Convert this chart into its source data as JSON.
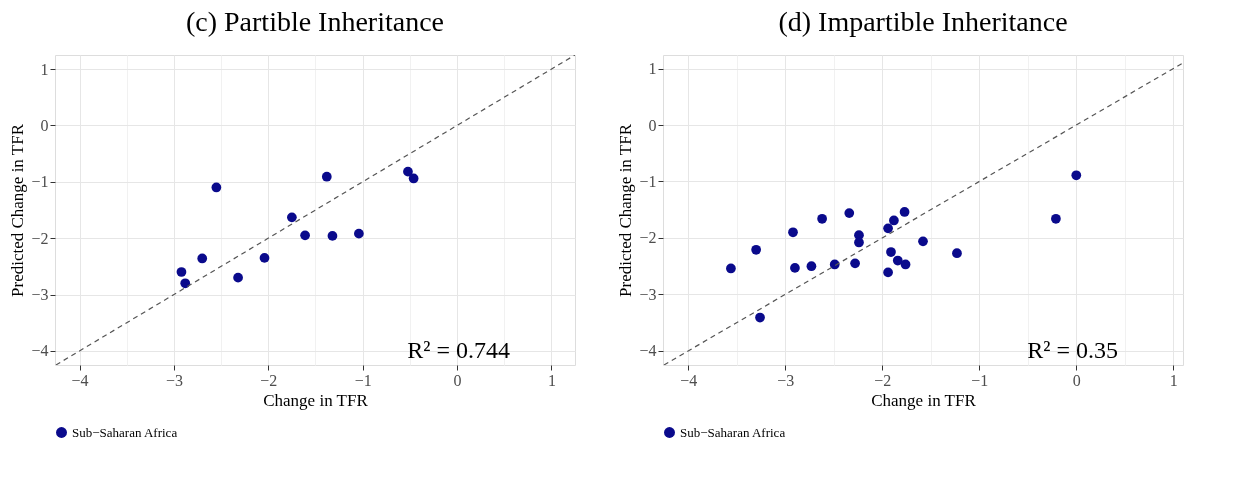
{
  "chart_data": [
    {
      "type": "scatter",
      "title": "(c) Partible Inheritance",
      "xlabel": "Change in TFR",
      "ylabel": "Predicted Change in TFR",
      "xlim": [
        -4.26,
        1.25
      ],
      "ylim": [
        -4.25,
        1.25
      ],
      "xticks": [
        -4,
        -3,
        -2,
        -1,
        0,
        1
      ],
      "yticks": [
        -4,
        -3,
        -2,
        -1,
        0,
        1
      ],
      "grid": true,
      "legend": "bottom",
      "marker": "circle",
      "annotations": [
        "R² = 0.744"
      ],
      "series": [
        {
          "name": "Sub−Saharan Africa",
          "color": "#0a0a8c",
          "x": [
            -2.92,
            -2.88,
            -2.7,
            -2.55,
            -2.32,
            -2.04,
            -1.75,
            -1.61,
            -1.38,
            -1.32,
            -1.04,
            -0.52,
            -0.46
          ],
          "values": [
            -2.6,
            -2.8,
            -2.36,
            -1.1,
            -2.7,
            -2.35,
            -1.63,
            -1.95,
            -0.91,
            -1.96,
            -1.92,
            -0.82,
            -0.94
          ]
        },
        {
          "type": "line",
          "line_style": "dashed",
          "marker": "none",
          "color": "#555555",
          "x": [
            -4.25,
            1.25
          ],
          "values": [
            -4.25,
            1.25
          ]
        }
      ]
    },
    {
      "type": "scatter",
      "title": "(d) Impartible Inheritance",
      "xlabel": "Change in TFR",
      "ylabel": "Predicted Change in TFR",
      "xlim": [
        -4.26,
        1.1
      ],
      "ylim": [
        -4.25,
        1.24
      ],
      "xticks": [
        -4,
        -3,
        -2,
        -1,
        0,
        1
      ],
      "yticks": [
        -4,
        -3,
        -2,
        -1,
        0,
        1
      ],
      "grid": true,
      "legend": "bottom",
      "marker": "circle",
      "annotations": [
        "R² = 0.35"
      ],
      "series": [
        {
          "name": "Sub−Saharan Africa",
          "color": "#0a0a8c",
          "x": [
            -3.56,
            -3.3,
            -3.26,
            -2.92,
            -2.9,
            -2.73,
            -2.62,
            -2.49,
            -2.34,
            -2.28,
            -2.24,
            -2.24,
            -1.94,
            -1.94,
            -1.91,
            -1.88,
            -1.84,
            -1.77,
            -1.76,
            -1.58,
            -1.23,
            -0.21,
            0.0
          ],
          "values": [
            -2.54,
            -2.21,
            -3.41,
            -1.9,
            -2.53,
            -2.5,
            -1.66,
            -2.47,
            -1.56,
            -2.45,
            -1.95,
            -2.08,
            -1.83,
            -2.61,
            -2.25,
            -1.69,
            -2.4,
            -1.54,
            -2.47,
            -2.06,
            -2.27,
            -1.66,
            -0.89
          ]
        },
        {
          "type": "line",
          "line_style": "dashed",
          "marker": "none",
          "color": "#555555",
          "x": [
            -4.25,
            1.1
          ],
          "values": [
            -4.25,
            1.1
          ]
        }
      ]
    }
  ]
}
